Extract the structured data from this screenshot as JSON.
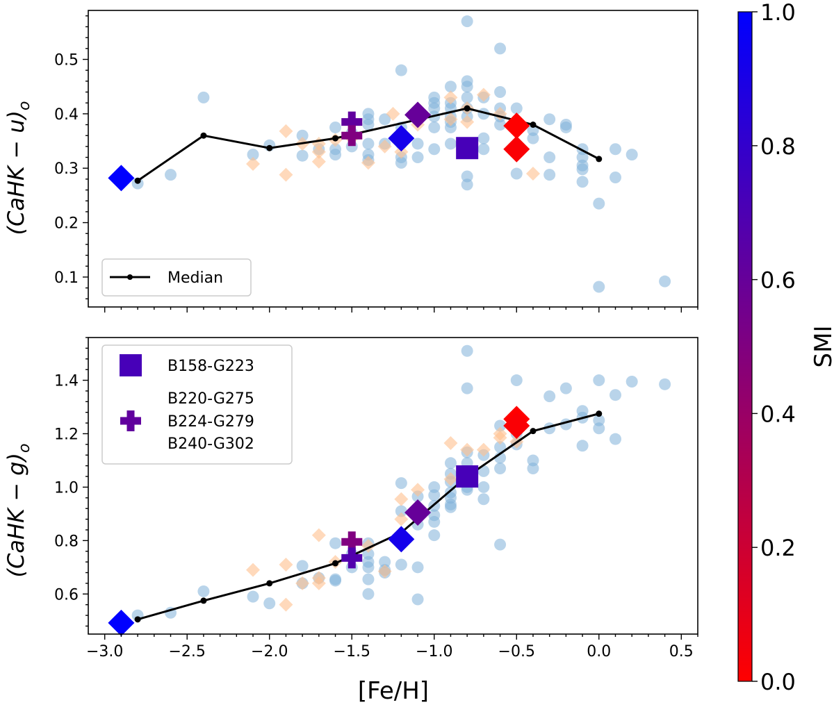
{
  "chart_data": {
    "type": "scatter",
    "xlabel": "[Fe/H]",
    "xlim": [
      -3.1,
      0.6
    ],
    "x_ticks": [
      -3.0,
      -2.5,
      -2.0,
      -1.5,
      -1.0,
      -0.5,
      0.0,
      0.5
    ],
    "x_tick_labels": [
      "−3.0",
      "−2.5",
      "−2.0",
      "−1.5",
      "−1.0",
      "−0.5",
      "0.0",
      "0.5"
    ],
    "colorbar": {
      "label": "SMI",
      "range": [
        0.0,
        1.0
      ],
      "ticks": [
        0.0,
        0.2,
        0.4,
        0.6,
        0.8,
        1.0
      ],
      "tick_labels": [
        "0.0",
        "0.2",
        "0.4",
        "0.6",
        "0.8",
        "1.0"
      ],
      "color_low": "#ff0000",
      "color_high": "#0000ff"
    },
    "styles": {
      "circle_color": "#7fb0d8",
      "diamond_color": "#ffc08e",
      "median_color": "#000000"
    },
    "panels": [
      {
        "id": "top",
        "ylabel": "(CaHK − u)o",
        "ylabel_main": "(CaHK",
        "ylabel_minus": " − ",
        "ylabel_var": "u",
        "ylabel_close": ")",
        "ylabel_sub": "o",
        "ylim": [
          0.045,
          0.59
        ],
        "y_ticks": [
          0.1,
          0.2,
          0.3,
          0.4,
          0.5
        ],
        "y_tick_labels": [
          "0.1",
          "0.2",
          "0.3",
          "0.4",
          "0.5"
        ],
        "legend": {
          "entries": [
            {
              "label": "Median",
              "marker": "line-dot"
            }
          ]
        },
        "median": {
          "name": "Median",
          "x": [
            -2.8,
            -2.4,
            -2.0,
            -1.6,
            -0.8,
            -0.4,
            0.0
          ],
          "y": [
            0.277,
            0.36,
            0.337,
            0.355,
            0.41,
            0.38,
            0.317
          ]
        },
        "circles": [
          [
            -2.8,
            0.272
          ],
          [
            -2.6,
            0.288
          ],
          [
            -2.4,
            0.43
          ],
          [
            -2.1,
            0.325
          ],
          [
            -2.0,
            0.342
          ],
          [
            -1.8,
            0.323
          ],
          [
            -1.8,
            0.36
          ],
          [
            -1.7,
            0.335
          ],
          [
            -1.6,
            0.375
          ],
          [
            -1.6,
            0.335
          ],
          [
            -1.6,
            0.325
          ],
          [
            -1.5,
            0.365
          ],
          [
            -1.5,
            0.34
          ],
          [
            -1.4,
            0.4
          ],
          [
            -1.4,
            0.39
          ],
          [
            -1.4,
            0.38
          ],
          [
            -1.4,
            0.345
          ],
          [
            -1.4,
            0.325
          ],
          [
            -1.4,
            0.315
          ],
          [
            -1.3,
            0.39
          ],
          [
            -1.3,
            0.345
          ],
          [
            -1.2,
            0.48
          ],
          [
            -1.2,
            0.375
          ],
          [
            -1.2,
            0.345
          ],
          [
            -1.2,
            0.32
          ],
          [
            -1.2,
            0.31
          ],
          [
            -1.1,
            0.395
          ],
          [
            -1.1,
            0.345
          ],
          [
            -1.1,
            0.32
          ],
          [
            -1.0,
            0.43
          ],
          [
            -1.0,
            0.42
          ],
          [
            -1.0,
            0.41
          ],
          [
            -1.0,
            0.395
          ],
          [
            -1.0,
            0.375
          ],
          [
            -1.0,
            0.335
          ],
          [
            -0.9,
            0.45
          ],
          [
            -0.9,
            0.42
          ],
          [
            -0.9,
            0.41
          ],
          [
            -0.9,
            0.395
          ],
          [
            -0.9,
            0.385
          ],
          [
            -0.9,
            0.375
          ],
          [
            -0.9,
            0.345
          ],
          [
            -0.8,
            0.57
          ],
          [
            -0.8,
            0.46
          ],
          [
            -0.8,
            0.45
          ],
          [
            -0.8,
            0.43
          ],
          [
            -0.8,
            0.41
          ],
          [
            -0.8,
            0.395
          ],
          [
            -0.8,
            0.34
          ],
          [
            -0.8,
            0.285
          ],
          [
            -0.8,
            0.27
          ],
          [
            -0.7,
            0.43
          ],
          [
            -0.7,
            0.4
          ],
          [
            -0.7,
            0.355
          ],
          [
            -0.7,
            0.335
          ],
          [
            -0.6,
            0.52
          ],
          [
            -0.6,
            0.44
          ],
          [
            -0.6,
            0.41
          ],
          [
            -0.6,
            0.395
          ],
          [
            -0.6,
            0.38
          ],
          [
            -0.5,
            0.41
          ],
          [
            -0.5,
            0.385
          ],
          [
            -0.5,
            0.29
          ],
          [
            -0.4,
            0.37
          ],
          [
            -0.4,
            0.355
          ],
          [
            -0.3,
            0.39
          ],
          [
            -0.3,
            0.32
          ],
          [
            -0.3,
            0.288
          ],
          [
            -0.2,
            0.38
          ],
          [
            -0.2,
            0.375
          ],
          [
            -0.1,
            0.335
          ],
          [
            -0.1,
            0.32
          ],
          [
            -0.1,
            0.305
          ],
          [
            -0.1,
            0.298
          ],
          [
            -0.1,
            0.275
          ],
          [
            0.0,
            0.235
          ],
          [
            0.0,
            0.082
          ],
          [
            0.1,
            0.335
          ],
          [
            0.1,
            0.283
          ],
          [
            0.2,
            0.325
          ],
          [
            0.4,
            0.092
          ]
        ],
        "diamonds": [
          [
            -2.1,
            0.308
          ],
          [
            -1.9,
            0.368
          ],
          [
            -1.9,
            0.288
          ],
          [
            -1.8,
            0.345
          ],
          [
            -1.7,
            0.345
          ],
          [
            -1.7,
            0.33
          ],
          [
            -1.7,
            0.312
          ],
          [
            -1.6,
            0.352
          ],
          [
            -1.5,
            0.355
          ],
          [
            -1.4,
            0.31
          ],
          [
            -1.3,
            0.34
          ],
          [
            -1.25,
            0.4
          ],
          [
            -1.2,
            0.33
          ],
          [
            -1.1,
            0.38
          ],
          [
            -0.9,
            0.43
          ],
          [
            -0.9,
            0.39
          ],
          [
            -0.8,
            0.41
          ],
          [
            -0.8,
            0.385
          ],
          [
            -0.7,
            0.435
          ],
          [
            -0.6,
            0.4
          ],
          [
            -0.5,
            0.385
          ],
          [
            -0.4,
            0.29
          ]
        ],
        "highlights": [
          {
            "shape": "diamond",
            "x": -2.9,
            "y": 0.282,
            "smi": 1.0
          },
          {
            "shape": "diamond",
            "x": -1.2,
            "y": 0.355,
            "smi": 0.92
          },
          {
            "shape": "diamond",
            "x": -1.1,
            "y": 0.398,
            "smi": 0.6
          },
          {
            "shape": "diamond",
            "x": -0.5,
            "y": 0.378,
            "smi": 0.0
          },
          {
            "shape": "diamond",
            "x": -0.5,
            "y": 0.335,
            "smi": 0.02
          },
          {
            "shape": "square",
            "x": -0.8,
            "y": 0.337,
            "smi": 0.72
          },
          {
            "shape": "plus",
            "x": -1.5,
            "y": 0.385,
            "smi": 0.62
          },
          {
            "shape": "plus",
            "x": -1.5,
            "y": 0.36,
            "smi": 0.5
          }
        ]
      },
      {
        "id": "bottom",
        "ylabel": "(CaHK − g)o",
        "ylabel_main": "(CaHK",
        "ylabel_minus": " − ",
        "ylabel_var": "g",
        "ylabel_close": ")",
        "ylabel_sub": "o",
        "ylim": [
          0.45,
          1.56
        ],
        "y_ticks": [
          0.6,
          0.8,
          1.0,
          1.2,
          1.4
        ],
        "y_tick_labels": [
          "0.6",
          "0.8",
          "1.0",
          "1.2",
          "1.4"
        ],
        "legend": {
          "entries": [
            {
              "label": "B158-G223",
              "marker": "square",
              "smi": 0.72
            },
            {
              "label": "B220-G275",
              "marker": "none"
            },
            {
              "label": "B224-G279",
              "marker": "plus",
              "smi": 0.62
            },
            {
              "label": "B240-G302",
              "marker": "none"
            }
          ]
        },
        "median": {
          "name": "Median",
          "x": [
            -2.8,
            -2.4,
            -2.0,
            -1.6,
            -1.2,
            -0.8,
            -0.4,
            0.0
          ],
          "y": [
            0.505,
            0.575,
            0.64,
            0.715,
            0.83,
            1.04,
            1.21,
            1.275
          ]
        },
        "circles": [
          [
            -2.8,
            0.52
          ],
          [
            -2.6,
            0.53
          ],
          [
            -2.4,
            0.61
          ],
          [
            -2.1,
            0.59
          ],
          [
            -2.0,
            0.565
          ],
          [
            -1.8,
            0.705
          ],
          [
            -1.8,
            0.64
          ],
          [
            -1.7,
            0.66
          ],
          [
            -1.6,
            0.79
          ],
          [
            -1.6,
            0.655
          ],
          [
            -1.6,
            0.65
          ],
          [
            -1.5,
            0.75
          ],
          [
            -1.5,
            0.7
          ],
          [
            -1.4,
            0.79
          ],
          [
            -1.4,
            0.75
          ],
          [
            -1.4,
            0.72
          ],
          [
            -1.4,
            0.7
          ],
          [
            -1.4,
            0.655
          ],
          [
            -1.4,
            0.6
          ],
          [
            -1.3,
            0.72
          ],
          [
            -1.3,
            0.69
          ],
          [
            -1.3,
            0.68
          ],
          [
            -1.2,
            1.015
          ],
          [
            -1.2,
            0.91
          ],
          [
            -1.2,
            0.8
          ],
          [
            -1.2,
            0.71
          ],
          [
            -1.1,
            0.965
          ],
          [
            -1.1,
            0.86
          ],
          [
            -1.1,
            0.7
          ],
          [
            -1.1,
            0.58
          ],
          [
            -1.0,
            1.0
          ],
          [
            -1.0,
            0.97
          ],
          [
            -1.0,
            0.93
          ],
          [
            -1.0,
            0.895
          ],
          [
            -1.0,
            0.87
          ],
          [
            -1.0,
            0.82
          ],
          [
            -0.9,
            1.09
          ],
          [
            -0.9,
            1.05
          ],
          [
            -0.9,
            1.02
          ],
          [
            -0.9,
            0.98
          ],
          [
            -0.9,
            0.96
          ],
          [
            -0.9,
            0.935
          ],
          [
            -0.9,
            0.925
          ],
          [
            -0.8,
            1.51
          ],
          [
            -0.8,
            1.37
          ],
          [
            -0.8,
            1.13
          ],
          [
            -0.8,
            1.09
          ],
          [
            -0.8,
            1.05
          ],
          [
            -0.8,
            1.0
          ],
          [
            -0.8,
            0.99
          ],
          [
            -0.7,
            1.12
          ],
          [
            -0.7,
            1.06
          ],
          [
            -0.7,
            1.0
          ],
          [
            -0.7,
            0.955
          ],
          [
            -0.6,
            1.23
          ],
          [
            -0.6,
            1.15
          ],
          [
            -0.6,
            1.11
          ],
          [
            -0.6,
            1.07
          ],
          [
            -0.6,
            0.785
          ],
          [
            -0.5,
            1.4
          ],
          [
            -0.5,
            1.2
          ],
          [
            -0.5,
            1.16
          ],
          [
            -0.4,
            1.1
          ],
          [
            -0.4,
            1.07
          ],
          [
            -0.3,
            1.34
          ],
          [
            -0.3,
            1.22
          ],
          [
            -0.2,
            1.37
          ],
          [
            -0.2,
            1.235
          ],
          [
            -0.1,
            1.285
          ],
          [
            -0.1,
            1.26
          ],
          [
            -0.1,
            1.155
          ],
          [
            0.0,
            1.4
          ],
          [
            0.0,
            1.25
          ],
          [
            0.0,
            1.22
          ],
          [
            0.1,
            1.345
          ],
          [
            0.1,
            1.18
          ],
          [
            0.2,
            1.395
          ],
          [
            0.4,
            1.385
          ]
        ],
        "diamonds": [
          [
            -2.1,
            0.69
          ],
          [
            -1.9,
            0.71
          ],
          [
            -1.9,
            0.56
          ],
          [
            -1.8,
            0.64
          ],
          [
            -1.7,
            0.82
          ],
          [
            -1.7,
            0.66
          ],
          [
            -1.7,
            0.64
          ],
          [
            -1.6,
            0.72
          ],
          [
            -1.4,
            0.78
          ],
          [
            -1.3,
            0.685
          ],
          [
            -1.2,
            0.955
          ],
          [
            -1.2,
            0.88
          ],
          [
            -1.1,
            0.99
          ],
          [
            -0.9,
            1.165
          ],
          [
            -0.9,
            1.03
          ],
          [
            -0.8,
            1.14
          ],
          [
            -0.7,
            1.14
          ],
          [
            -0.6,
            1.2
          ],
          [
            -0.6,
            1.185
          ],
          [
            -0.5,
            1.17
          ]
        ],
        "highlights": [
          {
            "shape": "diamond",
            "x": -2.9,
            "y": 0.492,
            "smi": 1.0
          },
          {
            "shape": "diamond",
            "x": -1.2,
            "y": 0.805,
            "smi": 0.92
          },
          {
            "shape": "diamond",
            "x": -1.1,
            "y": 0.905,
            "smi": 0.6
          },
          {
            "shape": "diamond",
            "x": -0.5,
            "y": 1.255,
            "smi": 0.0
          },
          {
            "shape": "diamond",
            "x": -0.5,
            "y": 1.23,
            "smi": 0.02
          },
          {
            "shape": "square",
            "x": -0.8,
            "y": 1.04,
            "smi": 0.72
          },
          {
            "shape": "plus",
            "x": -1.5,
            "y": 0.795,
            "smi": 0.5
          },
          {
            "shape": "plus",
            "x": -1.5,
            "y": 0.735,
            "smi": 0.68
          }
        ]
      }
    ]
  }
}
